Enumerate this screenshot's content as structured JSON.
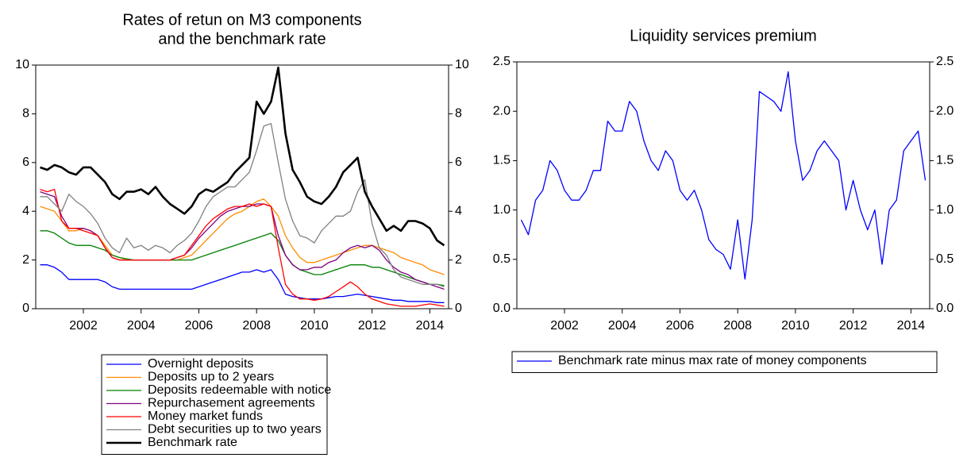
{
  "chart_data": [
    {
      "type": "line",
      "title": [
        "Rates of retun on M3 components",
        "and the benchmark rate"
      ],
      "xlim": [
        2000.35,
        2014.65
      ],
      "xticks": [
        2002,
        2004,
        2006,
        2008,
        2010,
        2012,
        2014
      ],
      "ylim": [
        0,
        10
      ],
      "yticks": [
        0,
        2,
        4,
        6,
        8,
        10
      ],
      "right_axis": true,
      "legend": "below",
      "x": [
        2000.5,
        2000.75,
        2001,
        2001.25,
        2001.5,
        2001.75,
        2002,
        2002.25,
        2002.5,
        2002.75,
        2003,
        2003.25,
        2003.5,
        2003.75,
        2004,
        2004.25,
        2004.5,
        2004.75,
        2005,
        2005.25,
        2005.5,
        2005.75,
        2006,
        2006.25,
        2006.5,
        2006.75,
        2007,
        2007.25,
        2007.5,
        2007.75,
        2008,
        2008.25,
        2008.5,
        2008.75,
        2009,
        2009.25,
        2009.5,
        2009.75,
        2010,
        2010.25,
        2010.5,
        2010.75,
        2011,
        2011.25,
        2011.5,
        2011.75,
        2012,
        2012.25,
        2012.5,
        2012.75,
        2013,
        2013.25,
        2013.5,
        2013.75,
        2014,
        2014.25,
        2014.5
      ],
      "series": [
        {
          "name": "Overnight deposits",
          "color": "#0000ff",
          "linewidth": 1.3,
          "values": [
            1.8,
            1.8,
            1.7,
            1.5,
            1.2,
            1.2,
            1.2,
            1.2,
            1.2,
            1.1,
            0.9,
            0.8,
            0.8,
            0.8,
            0.8,
            0.8,
            0.8,
            0.8,
            0.8,
            0.8,
            0.8,
            0.8,
            0.9,
            1.0,
            1.1,
            1.2,
            1.3,
            1.4,
            1.5,
            1.5,
            1.6,
            1.5,
            1.6,
            1.2,
            0.6,
            0.5,
            0.45,
            0.4,
            0.4,
            0.4,
            0.45,
            0.5,
            0.5,
            0.55,
            0.6,
            0.55,
            0.5,
            0.45,
            0.4,
            0.35,
            0.35,
            0.3,
            0.3,
            0.3,
            0.3,
            0.25,
            0.25
          ]
        },
        {
          "name": "Deposits up to 2 years",
          "color": "#ff8c00",
          "linewidth": 1.3,
          "values": [
            4.2,
            4.1,
            4.0,
            3.6,
            3.2,
            3.2,
            3.3,
            3.2,
            3.0,
            2.6,
            2.2,
            2.1,
            2.0,
            2.0,
            2.0,
            2.0,
            2.0,
            2.0,
            2.0,
            2.0,
            2.1,
            2.2,
            2.5,
            2.8,
            3.1,
            3.4,
            3.7,
            3.9,
            4.0,
            4.2,
            4.4,
            4.5,
            4.2,
            3.8,
            3.0,
            2.5,
            2.1,
            1.9,
            1.9,
            2.0,
            2.1,
            2.2,
            2.3,
            2.4,
            2.5,
            2.6,
            2.6,
            2.5,
            2.4,
            2.3,
            2.1,
            2.0,
            1.9,
            1.8,
            1.6,
            1.5,
            1.4
          ]
        },
        {
          "name": "Deposits redeemable with notice",
          "color": "#008000",
          "linewidth": 1.3,
          "values": [
            3.2,
            3.2,
            3.1,
            2.9,
            2.7,
            2.6,
            2.6,
            2.6,
            2.5,
            2.4,
            2.2,
            2.1,
            2.05,
            2.0,
            2.0,
            2.0,
            2.0,
            2.0,
            2.0,
            2.0,
            2.0,
            2.0,
            2.1,
            2.2,
            2.3,
            2.4,
            2.5,
            2.6,
            2.7,
            2.8,
            2.9,
            3.0,
            3.1,
            2.8,
            2.2,
            1.8,
            1.6,
            1.5,
            1.4,
            1.4,
            1.5,
            1.6,
            1.7,
            1.8,
            1.8,
            1.8,
            1.7,
            1.7,
            1.6,
            1.5,
            1.4,
            1.3,
            1.2,
            1.1,
            1.0,
            1.0,
            0.95
          ]
        },
        {
          "name": "Repurchasement agreements",
          "color": "#800080",
          "linewidth": 1.3,
          "values": [
            4.8,
            4.7,
            4.6,
            3.8,
            3.3,
            3.3,
            3.3,
            3.2,
            3.0,
            2.5,
            2.1,
            2.0,
            2.0,
            2.0,
            2.0,
            2.0,
            2.0,
            2.0,
            2.0,
            2.1,
            2.2,
            2.5,
            2.9,
            3.2,
            3.5,
            3.8,
            4.0,
            4.1,
            4.2,
            4.2,
            4.3,
            4.3,
            4.2,
            3.0,
            2.2,
            1.8,
            1.6,
            1.6,
            1.7,
            1.7,
            1.9,
            2.0,
            2.3,
            2.5,
            2.6,
            2.5,
            2.6,
            2.4,
            2.0,
            1.7,
            1.5,
            1.4,
            1.2,
            1.1,
            1.0,
            0.9,
            0.8
          ]
        },
        {
          "name": "Money market funds",
          "color": "#ff0000",
          "linewidth": 1.3,
          "values": [
            4.9,
            4.8,
            4.9,
            3.6,
            3.3,
            3.3,
            3.2,
            3.1,
            3.0,
            2.5,
            2.1,
            2.0,
            2.0,
            2.0,
            2.0,
            2.0,
            2.0,
            2.0,
            2.0,
            2.1,
            2.2,
            2.6,
            3.0,
            3.4,
            3.7,
            3.9,
            4.1,
            4.2,
            4.2,
            4.3,
            4.2,
            4.3,
            4.2,
            2.5,
            1.0,
            0.6,
            0.4,
            0.4,
            0.35,
            0.4,
            0.5,
            0.7,
            0.9,
            1.1,
            0.9,
            0.6,
            0.4,
            0.3,
            0.2,
            0.15,
            0.1,
            0.1,
            0.1,
            0.15,
            0.2,
            0.15,
            0.1
          ]
        },
        {
          "name": "Debt securities up to two years",
          "color": "#808080",
          "linewidth": 1.3,
          "values": [
            4.6,
            4.6,
            4.3,
            4.0,
            4.7,
            4.4,
            4.2,
            3.9,
            3.5,
            2.9,
            2.5,
            2.3,
            2.9,
            2.5,
            2.6,
            2.4,
            2.6,
            2.5,
            2.3,
            2.6,
            2.8,
            3.1,
            3.6,
            4.2,
            4.6,
            4.8,
            5.0,
            5.0,
            5.3,
            5.6,
            6.5,
            7.5,
            7.6,
            6.0,
            4.5,
            3.6,
            3.0,
            2.9,
            2.7,
            3.2,
            3.5,
            3.8,
            3.8,
            4.0,
            4.8,
            5.3,
            3.5,
            2.5,
            2.2,
            1.6,
            1.3,
            1.2,
            1.1,
            1.0,
            1.0,
            1.0,
            0.9
          ]
        },
        {
          "name": "Benchmark rate",
          "color": "#000000",
          "linewidth": 2.6,
          "values": [
            5.8,
            5.7,
            5.9,
            5.8,
            5.6,
            5.5,
            5.8,
            5.8,
            5.5,
            5.2,
            4.7,
            4.5,
            4.8,
            4.8,
            4.9,
            4.7,
            5.0,
            4.6,
            4.3,
            4.1,
            3.9,
            4.2,
            4.7,
            4.9,
            4.8,
            5.0,
            5.2,
            5.6,
            5.9,
            6.2,
            8.5,
            8.0,
            8.5,
            9.9,
            7.2,
            5.7,
            5.2,
            4.6,
            4.4,
            4.3,
            4.6,
            5.0,
            5.6,
            5.9,
            6.2,
            4.8,
            4.2,
            3.7,
            3.2,
            3.4,
            3.2,
            3.6,
            3.6,
            3.5,
            3.3,
            2.8,
            2.6
          ]
        }
      ]
    },
    {
      "type": "line",
      "title": [
        "Liquidity services premium"
      ],
      "xlim": [
        2000.35,
        2014.65
      ],
      "xticks": [
        2002,
        2004,
        2006,
        2008,
        2010,
        2012,
        2014
      ],
      "ylim": [
        0,
        2.5
      ],
      "yticks": [
        {
          "value": 0,
          "label": "0.0"
        },
        0.5,
        {
          "value": 1,
          "label": "1.0"
        },
        1.5,
        {
          "value": 2,
          "label": "2.0"
        },
        2.5
      ],
      "right_axis": true,
      "legend": "below",
      "x": [
        2000.5,
        2000.75,
        2001,
        2001.25,
        2001.5,
        2001.75,
        2002,
        2002.25,
        2002.5,
        2002.75,
        2003,
        2003.25,
        2003.5,
        2003.75,
        2004,
        2004.25,
        2004.5,
        2004.75,
        2005,
        2005.25,
        2005.5,
        2005.75,
        2006,
        2006.25,
        2006.5,
        2006.75,
        2007,
        2007.25,
        2007.5,
        2007.75,
        2008,
        2008.25,
        2008.5,
        2008.75,
        2009,
        2009.25,
        2009.5,
        2009.75,
        2010,
        2010.25,
        2010.5,
        2010.75,
        2011,
        2011.25,
        2011.5,
        2011.75,
        2012,
        2012.25,
        2012.5,
        2012.75,
        2013,
        2013.25,
        2013.5,
        2013.75,
        2014,
        2014.25,
        2014.5
      ],
      "series": [
        {
          "name": "Benchmark rate minus max rate of money components",
          "color": "#0000ff",
          "linewidth": 1.3,
          "values": [
            0.9,
            0.75,
            1.1,
            1.2,
            1.5,
            1.4,
            1.2,
            1.1,
            1.1,
            1.2,
            1.4,
            1.4,
            1.9,
            1.8,
            1.8,
            2.1,
            2.0,
            1.7,
            1.5,
            1.4,
            1.6,
            1.5,
            1.2,
            1.1,
            1.2,
            1.0,
            0.7,
            0.6,
            0.55,
            0.4,
            0.9,
            0.3,
            0.9,
            2.2,
            2.15,
            2.1,
            2.0,
            2.4,
            1.7,
            1.3,
            1.4,
            1.6,
            1.7,
            1.6,
            1.5,
            1.0,
            1.3,
            1.0,
            0.8,
            1.0,
            0.45,
            1.0,
            1.1,
            1.6,
            1.7,
            1.8,
            1.3
          ]
        }
      ]
    }
  ]
}
